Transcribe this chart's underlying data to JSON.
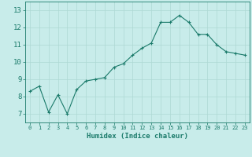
{
  "x": [
    0,
    1,
    2,
    3,
    4,
    5,
    6,
    7,
    8,
    9,
    10,
    11,
    12,
    13,
    14,
    15,
    16,
    17,
    18,
    19,
    20,
    21,
    22,
    23
  ],
  "y": [
    8.3,
    8.6,
    7.1,
    8.1,
    7.0,
    8.4,
    8.9,
    9.0,
    9.1,
    9.7,
    9.9,
    10.4,
    10.8,
    11.1,
    12.3,
    12.3,
    12.7,
    12.3,
    11.6,
    11.6,
    11.0,
    10.6,
    10.5,
    10.4
  ],
  "xlabel": "Humidex (Indice chaleur)",
  "line_color": "#1a7a6a",
  "marker_color": "#1a7a6a",
  "bg_color": "#c8ecea",
  "grid_color": "#aed8d4",
  "axis_color": "#1a7a6a",
  "tick_label_color": "#1a7a6a",
  "xlabel_color": "#1a7a6a",
  "ylim": [
    6.5,
    13.5
  ],
  "yticks": [
    7,
    8,
    9,
    10,
    11,
    12,
    13
  ],
  "xticks": [
    0,
    1,
    2,
    3,
    4,
    5,
    6,
    7,
    8,
    9,
    10,
    11,
    12,
    13,
    14,
    15,
    16,
    17,
    18,
    19,
    20,
    21,
    22,
    23
  ]
}
